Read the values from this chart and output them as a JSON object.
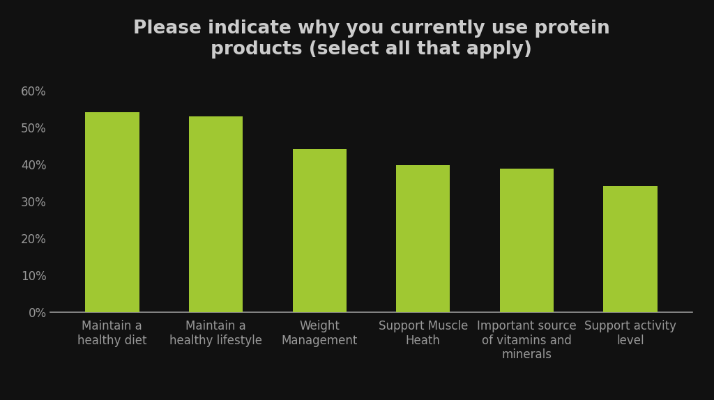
{
  "title": "Please indicate why you currently use protein\nproducts (select all that apply)",
  "categories": [
    "Maintain a\nhealthy diet",
    "Maintain a\nhealthy lifestyle",
    "Weight\nManagement",
    "Support Muscle\nHeath",
    "Important source\nof vitamins and\nminerals",
    "Support activity\nlevel"
  ],
  "values": [
    0.542,
    0.53,
    0.442,
    0.398,
    0.388,
    0.342
  ],
  "bar_color": "#a0c832",
  "background_color": "#111111",
  "text_color": "#999999",
  "title_color": "#cccccc",
  "ylim": [
    0,
    0.65
  ],
  "yticks": [
    0.0,
    0.1,
    0.2,
    0.3,
    0.4,
    0.5,
    0.6
  ],
  "title_fontsize": 19,
  "tick_fontsize": 12,
  "bar_width": 0.52
}
